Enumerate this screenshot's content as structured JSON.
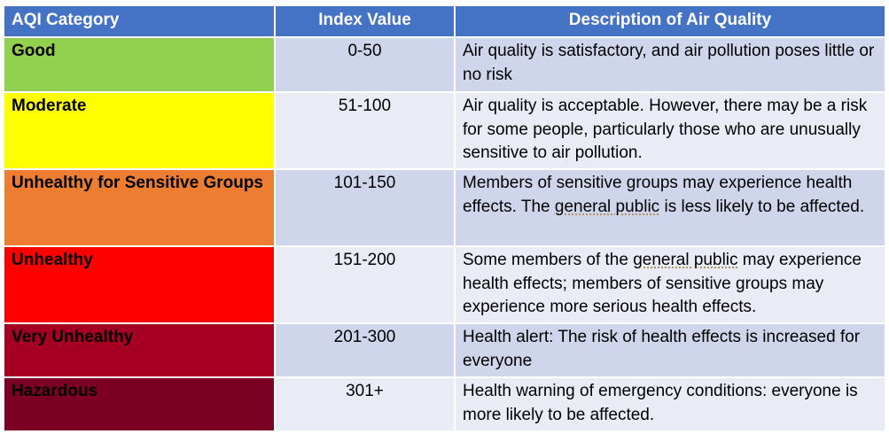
{
  "headers": {
    "category": "AQI Category",
    "index": "Index Value",
    "description": "Description of Air Quality"
  },
  "rows": [
    {
      "category": "Good",
      "index": "0-50",
      "description": "Air quality is satisfactory, and air pollution poses little or no risk",
      "color": "#92d050"
    },
    {
      "category": "Moderate",
      "index": "51-100",
      "description": "Air quality is acceptable. However, there may be a risk for some people, particularly those who are unusually sensitive to air pollution.",
      "color": "#ffff00"
    },
    {
      "category": "Unhealthy for Sensitive Groups",
      "index": "101-150",
      "description_parts": [
        "Members of sensitive groups may experience health effects. The ",
        "general public",
        " is less likely to be affected."
      ],
      "color": "#ed7d31"
    },
    {
      "category": "Unhealthy",
      "index": "151-200",
      "description_parts": [
        "Some members of the ",
        "general public",
        " may experience health effects; members of sensitive groups may experience more serious health effects."
      ],
      "color": "#ff0000"
    },
    {
      "category": "Very Unhealthy",
      "index": "201-300",
      "description": "Health alert: The risk of health effects is increased for everyone",
      "color": "#a50021"
    },
    {
      "category": "Hazardous",
      "index": "301+",
      "description": "Health warning of emergency conditions: everyone is more likely to be affected.",
      "color": "#7b0024"
    }
  ],
  "colors": {
    "header_bg": "#4472c4",
    "row_odd_bg": "#cfd5ea",
    "row_even_bg": "#e9ebf5"
  }
}
